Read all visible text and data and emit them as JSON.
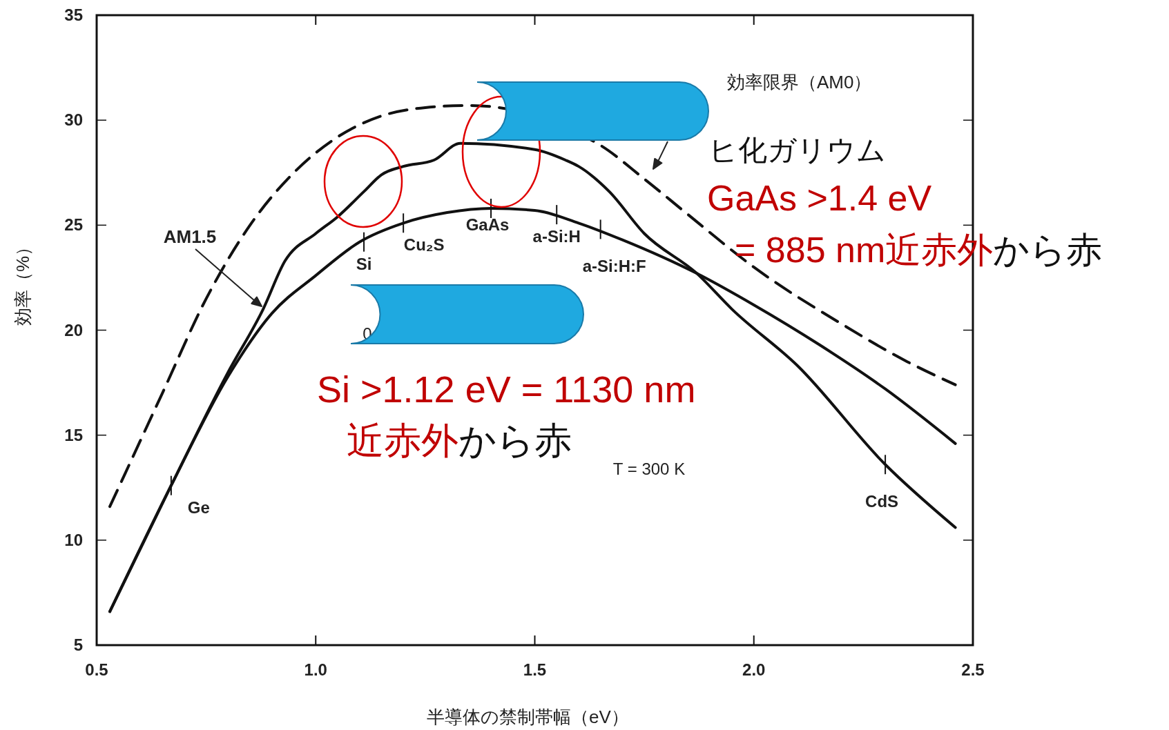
{
  "chart_data": {
    "type": "line",
    "xlabel": "半導体の禁制帯幅（eV）",
    "ylabel": "効率（%）",
    "xlim": [
      0.5,
      2.5
    ],
    "ylim": [
      5,
      35
    ],
    "xticks": [
      {
        "value": 0.5,
        "label": "0.5"
      },
      {
        "value": 1.0,
        "label": "1.0"
      },
      {
        "value": 1.5,
        "label": "1.5"
      },
      {
        "value": 2.0,
        "label": "2.0"
      },
      {
        "value": 2.5,
        "label": "2.5"
      }
    ],
    "yticks": [
      5,
      10,
      15,
      20,
      25,
      30,
      35
    ],
    "grid": false,
    "marker": "none",
    "series": [
      {
        "color": "#111111",
        "line_style": "dashed",
        "x": [
          0.53,
          0.65,
          0.75,
          0.85,
          0.95,
          1.05,
          1.15,
          1.25,
          1.35,
          1.45,
          1.55,
          1.65,
          1.75,
          1.85,
          2.0,
          2.2,
          2.35,
          2.46
        ],
        "values": [
          11.6,
          17,
          21.5,
          25,
          27.5,
          29.2,
          30.2,
          30.6,
          30.7,
          null,
          null,
          28.8,
          27.2,
          25.5,
          23,
          20.3,
          18.5,
          17.4
        ]
      },
      {
        "color": "#111111",
        "line_style": "solid",
        "x": [
          0.53,
          0.67,
          0.8,
          0.88,
          0.93,
          1.0,
          1.05,
          1.11,
          1.15,
          1.2,
          1.27,
          1.33,
          1.38,
          1.42,
          1.5,
          1.57,
          1.6,
          1.67,
          1.75,
          1.87,
          1.95,
          2.1,
          2.3,
          2.46
        ],
        "values": [
          6.6,
          12.6,
          18,
          21,
          23.3,
          24.6,
          25.4,
          26.6,
          27.4,
          27.8,
          28.1,
          28.9,
          null,
          null,
          28.6,
          28.1,
          27.8,
          26.6,
          24.6,
          22.7,
          21,
          18.3,
          13.6,
          10.6
        ]
      },
      {
        "color": "#111111",
        "line_style": "solid",
        "x": [
          0.53,
          0.67,
          0.8,
          0.9,
          1.0,
          1.1,
          1.2,
          1.3,
          1.4,
          1.5,
          1.6,
          1.7,
          1.87,
          2.0,
          2.15,
          2.3,
          2.46
        ],
        "values": [
          6.6,
          12.6,
          17.8,
          20.8,
          22.6,
          24.2,
          25.1,
          25.6,
          25.8,
          25.7,
          25.1,
          24.3,
          22.7,
          21.2,
          19.3,
          17.2,
          14.6
        ]
      }
    ],
    "annotations": [
      {
        "text": "Ge",
        "x": 0.67,
        "y": 12.6
      },
      {
        "text": "Si",
        "x": 1.11,
        "y": 24.2
      },
      {
        "text": "Cu₂S",
        "x": 1.2,
        "y": 25.1
      },
      {
        "text": "GaAs",
        "x": 1.4,
        "y": 25.8
      },
      {
        "text": "a-Si:H",
        "x": 1.55,
        "y": 25.5
      },
      {
        "text": "a-Si:H:F",
        "x": 1.65,
        "y": 24.8
      },
      {
        "text": "CdS",
        "x": 2.3,
        "y": 13.6
      },
      "T = 300 K",
      "効率限界（AM0）",
      "AM1.5",
      "0",
      "ヒ化ガリウム",
      "GaAs >1.4 eV",
      "= 885 nm近赤外",
      "から赤",
      "Si >1.12 eV = 1130 nm",
      "近赤外",
      "から赤"
    ]
  }
}
